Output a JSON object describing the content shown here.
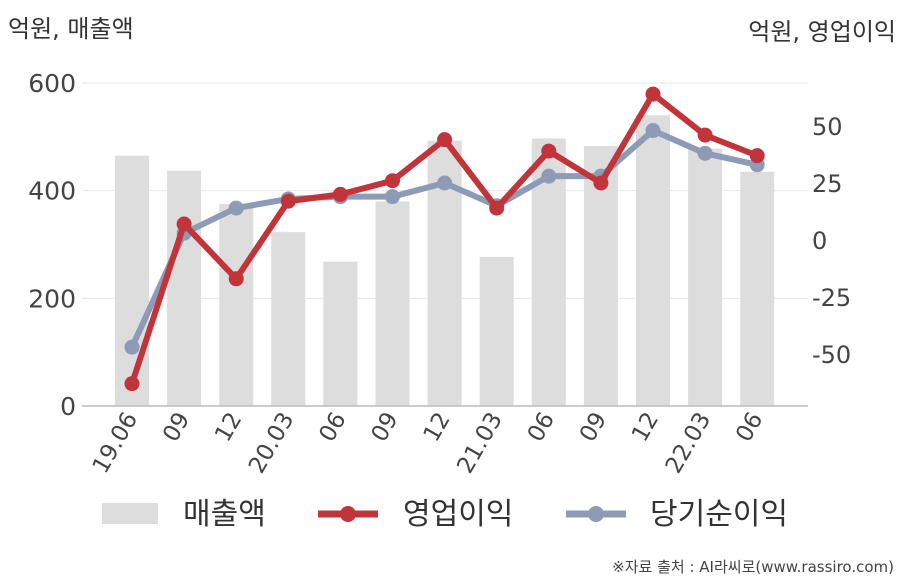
{
  "chart_data": {
    "type": "bar+line",
    "left_axis_unit": "억원, 매출액",
    "right_axis_unit": "억원, 영업이익",
    "categories": [
      "19.06",
      "09",
      "12",
      "20.03",
      "06",
      "09",
      "12",
      "21.03",
      "06",
      "09",
      "12",
      "22.03",
      "06"
    ],
    "left_axis": {
      "ylim": [
        0,
        600
      ],
      "ticks": [
        "0",
        "200",
        "400",
        "600"
      ]
    },
    "right_axis": {
      "ylim": [
        -75,
        75
      ],
      "ticks": [
        "-50",
        "-25",
        "0",
        "25",
        "50"
      ]
    },
    "series": [
      {
        "name": "매출액",
        "type": "bar",
        "axis": "left",
        "color": "#dddddd",
        "values": [
          465,
          437,
          375,
          323,
          268,
          380,
          493,
          277,
          497,
          483,
          540,
          478,
          435
        ]
      },
      {
        "name": "영업이익",
        "type": "line",
        "axis": "right",
        "color": "#c0343a",
        "values": [
          -63,
          7,
          -17,
          17,
          20,
          26,
          44,
          14,
          39,
          25,
          64,
          46,
          37
        ]
      },
      {
        "name": "당기순이익",
        "type": "line",
        "axis": "right",
        "color": "#8e9bb6",
        "values": [
          -47,
          3,
          14,
          18,
          19,
          19,
          25,
          15,
          28,
          28,
          48,
          38,
          33
        ]
      }
    ],
    "grid": true,
    "legend_position": "bottom"
  },
  "source": "※자료 출처 : AI라씨로(www.rassiro.com)"
}
